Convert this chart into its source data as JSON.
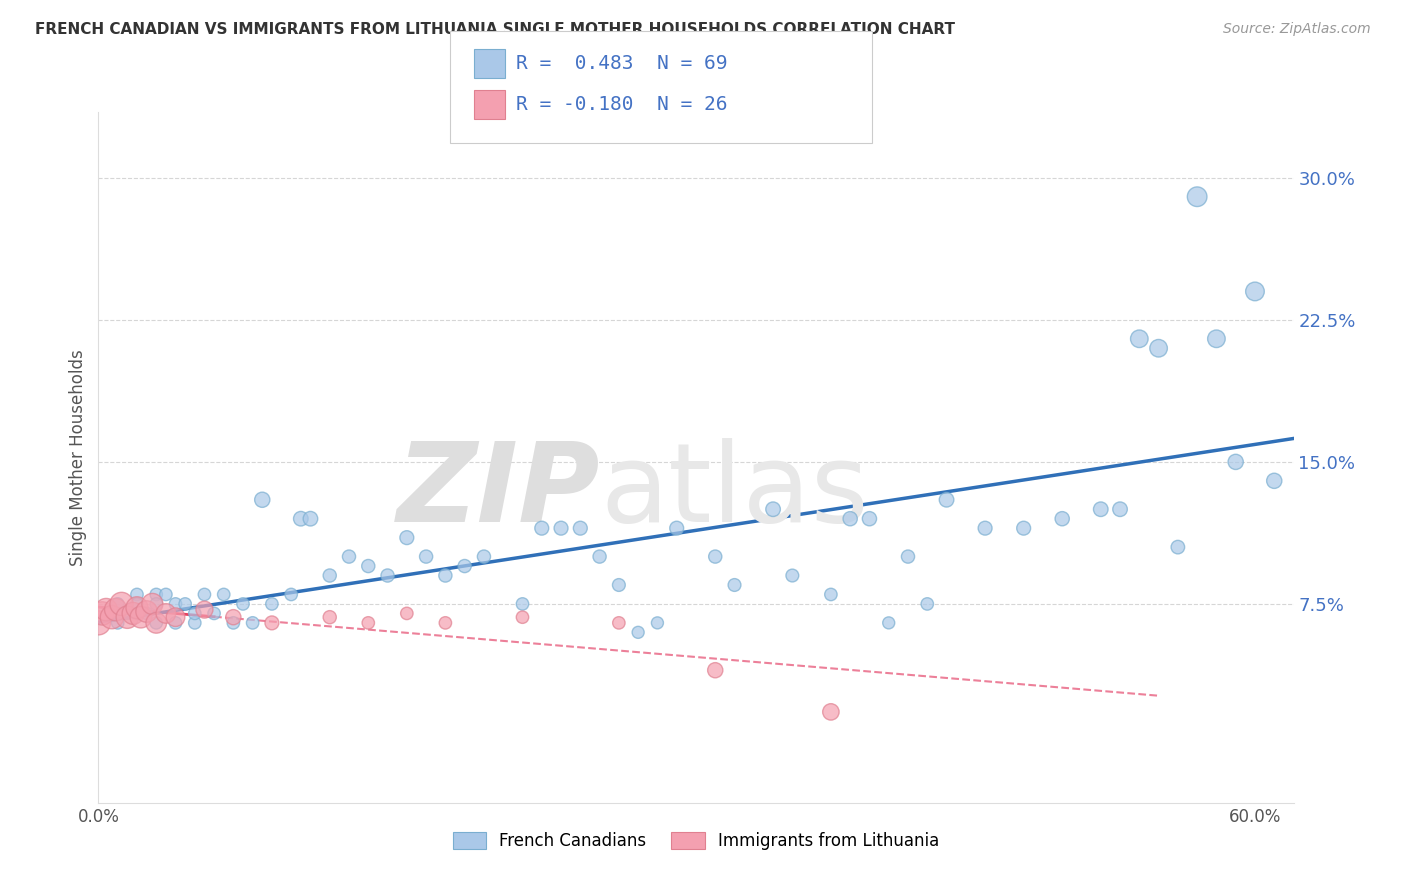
{
  "title": "FRENCH CANADIAN VS IMMIGRANTS FROM LITHUANIA SINGLE MOTHER HOUSEHOLDS CORRELATION CHART",
  "source": "Source: ZipAtlas.com",
  "ylabel": "Single Mother Households",
  "xlim": [
    0.0,
    0.62
  ],
  "ylim": [
    -0.03,
    0.335
  ],
  "yticks": [
    0.075,
    0.15,
    0.225,
    0.3
  ],
  "ytick_labels": [
    "7.5%",
    "15.0%",
    "22.5%",
    "30.0%"
  ],
  "legend_label1": "French Canadians",
  "legend_label2": "Immigrants from Lithuania",
  "blue_color": "#aac8e8",
  "pink_color": "#f4a0b0",
  "blue_edge": "#7aaed0",
  "pink_edge": "#e08090",
  "blue_line_color": "#3070b8",
  "pink_line_color": "#e86080",
  "pink_solid_line": "#e84060",
  "grid_color": "#cccccc",
  "french_x": [
    0.01,
    0.01,
    0.015,
    0.02,
    0.02,
    0.02,
    0.025,
    0.03,
    0.03,
    0.03,
    0.035,
    0.04,
    0.04,
    0.045,
    0.05,
    0.05,
    0.055,
    0.06,
    0.065,
    0.07,
    0.075,
    0.08,
    0.085,
    0.09,
    0.1,
    0.105,
    0.11,
    0.12,
    0.13,
    0.14,
    0.15,
    0.16,
    0.17,
    0.18,
    0.19,
    0.2,
    0.22,
    0.23,
    0.24,
    0.25,
    0.26,
    0.27,
    0.28,
    0.29,
    0.3,
    0.32,
    0.33,
    0.35,
    0.36,
    0.38,
    0.39,
    0.4,
    0.41,
    0.42,
    0.43,
    0.44,
    0.46,
    0.48,
    0.5,
    0.52,
    0.53,
    0.54,
    0.55,
    0.56,
    0.57,
    0.58,
    0.59,
    0.6,
    0.61
  ],
  "french_y": [
    0.075,
    0.065,
    0.07,
    0.08,
    0.07,
    0.075,
    0.07,
    0.065,
    0.08,
    0.075,
    0.08,
    0.075,
    0.065,
    0.075,
    0.065,
    0.07,
    0.08,
    0.07,
    0.08,
    0.065,
    0.075,
    0.065,
    0.13,
    0.075,
    0.08,
    0.12,
    0.12,
    0.09,
    0.1,
    0.095,
    0.09,
    0.11,
    0.1,
    0.09,
    0.095,
    0.1,
    0.075,
    0.115,
    0.115,
    0.115,
    0.1,
    0.085,
    0.06,
    0.065,
    0.115,
    0.1,
    0.085,
    0.125,
    0.09,
    0.08,
    0.12,
    0.12,
    0.065,
    0.1,
    0.075,
    0.13,
    0.115,
    0.115,
    0.12,
    0.125,
    0.125,
    0.215,
    0.21,
    0.105,
    0.29,
    0.215,
    0.15,
    0.24,
    0.14
  ],
  "lithuania_x": [
    0.0,
    0.002,
    0.004,
    0.007,
    0.009,
    0.012,
    0.015,
    0.018,
    0.02,
    0.022,
    0.025,
    0.028,
    0.03,
    0.035,
    0.04,
    0.055,
    0.07,
    0.09,
    0.12,
    0.14,
    0.16,
    0.18,
    0.22,
    0.27,
    0.32,
    0.38
  ],
  "lithuania_y": [
    0.065,
    0.07,
    0.072,
    0.068,
    0.072,
    0.075,
    0.068,
    0.07,
    0.073,
    0.068,
    0.071,
    0.075,
    0.065,
    0.07,
    0.068,
    0.072,
    0.068,
    0.065,
    0.068,
    0.065,
    0.07,
    0.065,
    0.068,
    0.065,
    0.04,
    0.018
  ],
  "lithuania_sizes": [
    300,
    280,
    260,
    280,
    260,
    280,
    260,
    250,
    250,
    240,
    240,
    230,
    220,
    200,
    180,
    150,
    120,
    100,
    90,
    80,
    80,
    80,
    80,
    80,
    120,
    140
  ],
  "french_sizes": [
    80,
    80,
    80,
    80,
    80,
    80,
    80,
    80,
    80,
    80,
    80,
    80,
    80,
    80,
    80,
    80,
    80,
    80,
    80,
    80,
    80,
    80,
    120,
    80,
    80,
    110,
    110,
    90,
    90,
    90,
    90,
    100,
    90,
    90,
    90,
    90,
    80,
    100,
    100,
    100,
    90,
    85,
    75,
    75,
    100,
    90,
    85,
    110,
    85,
    80,
    105,
    105,
    75,
    90,
    80,
    110,
    100,
    100,
    105,
    110,
    110,
    160,
    160,
    95,
    200,
    160,
    120,
    180,
    120
  ]
}
